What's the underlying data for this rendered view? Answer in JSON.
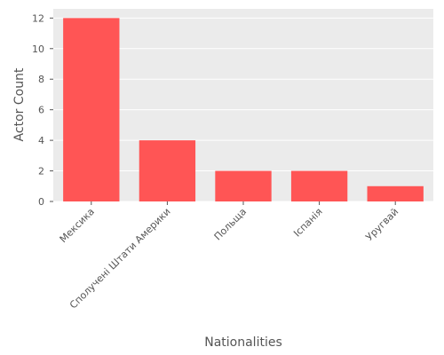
{
  "chart_data": {
    "type": "bar",
    "categories": [
      "Мексика",
      "Сполучені Штати Америки",
      "Польща",
      "Іспанія",
      "Уругвай"
    ],
    "values": [
      12,
      4,
      2,
      2,
      1
    ],
    "xlabel": "Nationalities",
    "ylabel": "Actor Count",
    "ylim": [
      0,
      12.6
    ],
    "yticks": [
      0,
      2,
      4,
      6,
      8,
      10,
      12
    ],
    "grid": true,
    "bar_color": "#ff5555",
    "background_color": "#ebebeb",
    "grid_color": "#ffffff"
  }
}
